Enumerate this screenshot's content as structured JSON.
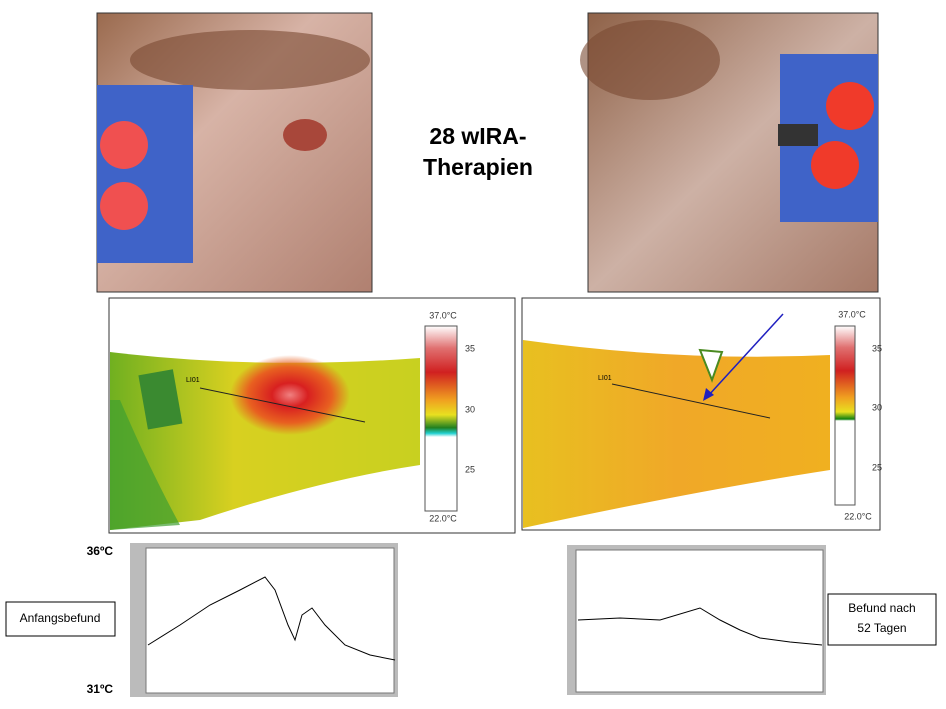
{
  "title_lines": [
    "28 wIRA-",
    "Therapien"
  ],
  "thermograms": [
    {
      "scale": {
        "max": "37.0°C",
        "ticks": [
          35,
          30,
          25
        ],
        "min": "22.0°C"
      },
      "line_label": "LI01"
    },
    {
      "scale": {
        "max": "37.0°C",
        "ticks": [
          35,
          30,
          25
        ],
        "min": "22.0°C"
      },
      "line_label": "LI01"
    }
  ],
  "profile": {
    "max_label": "36ºC",
    "min_label": "31ºC"
  },
  "captions": [
    [
      "Anfangsbefund"
    ],
    [
      "Befund nach",
      "52 Tagen"
    ]
  ]
}
